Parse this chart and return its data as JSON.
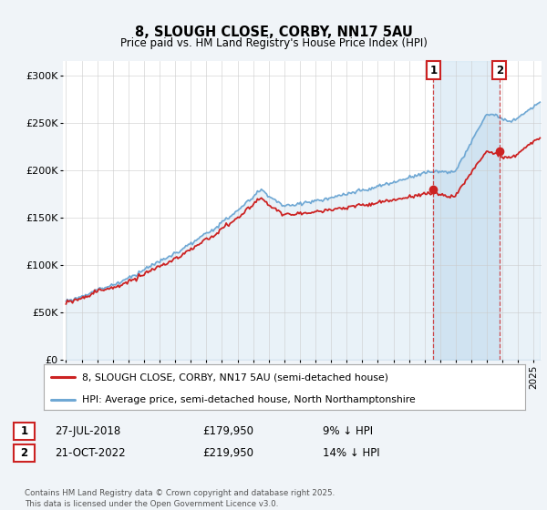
{
  "title1": "8, SLOUGH CLOSE, CORBY, NN17 5AU",
  "title2": "Price paid vs. HM Land Registry's House Price Index (HPI)",
  "ylabel_ticks": [
    "£0",
    "£50K",
    "£100K",
    "£150K",
    "£200K",
    "£250K",
    "£300K"
  ],
  "ytick_values": [
    0,
    50000,
    100000,
    150000,
    200000,
    250000,
    300000
  ],
  "ylim": [
    0,
    315000
  ],
  "xlim_start": 1994.8,
  "xlim_end": 2025.5,
  "hpi_color": "#6fa8d4",
  "hpi_fill_color": "#d6e8f5",
  "price_color": "#cc2222",
  "marker1_x": 2018.57,
  "marker1_y": 179950,
  "marker2_x": 2022.8,
  "marker2_y": 219950,
  "vline_color": "#cc2222",
  "legend_line1": "8, SLOUGH CLOSE, CORBY, NN17 5AU (semi-detached house)",
  "legend_line2": "HPI: Average price, semi-detached house, North Northamptonshire",
  "marker1_date": "27-JUL-2018",
  "marker1_price": "£179,950",
  "marker1_hpi_text": "9% ↓ HPI",
  "marker2_date": "21-OCT-2022",
  "marker2_price": "£219,950",
  "marker2_hpi_text": "14% ↓ HPI",
  "footnote": "Contains HM Land Registry data © Crown copyright and database right 2025.\nThis data is licensed under the Open Government Licence v3.0.",
  "bg_color": "#f0f4f8",
  "plot_bg": "#ffffff",
  "grid_color": "#cccccc",
  "annotation_box_color": "#cc2222"
}
